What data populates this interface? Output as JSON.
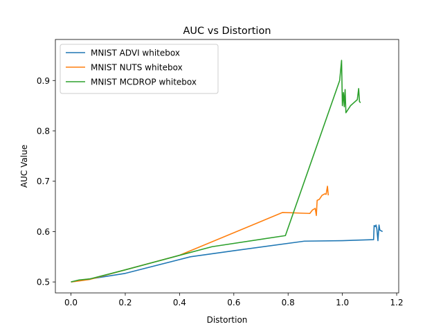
{
  "chart_data": {
    "type": "line",
    "title": "AUC vs Distortion",
    "xlabel": "Distortion",
    "ylabel": "AUC Value",
    "xlim": [
      -0.0575,
      1.2075
    ],
    "ylim": [
      0.4782,
      0.9815
    ],
    "xticks": [
      0.0,
      0.2,
      0.4,
      0.6,
      0.8,
      1.0,
      1.2
    ],
    "xtick_labels": [
      "0.0",
      "0.2",
      "0.4",
      "0.6",
      "0.8",
      "1.0",
      "1.2"
    ],
    "yticks": [
      0.5,
      0.6,
      0.7,
      0.8,
      0.9
    ],
    "ytick_labels": [
      "0.5",
      "0.6",
      "0.7",
      "0.8",
      "0.9"
    ],
    "grid": false,
    "legend_position": "top-left",
    "series": [
      {
        "name": "MNIST ADVI whitebox",
        "color": "#1f77b4",
        "points": [
          [
            0.0,
            0.5
          ],
          [
            0.03,
            0.503
          ],
          [
            0.07,
            0.506
          ],
          [
            0.2,
            0.517
          ],
          [
            0.44,
            0.55
          ],
          [
            0.6,
            0.562
          ],
          [
            0.86,
            0.581
          ],
          [
            1.0,
            0.582
          ],
          [
            1.115,
            0.584
          ],
          [
            1.117,
            0.612
          ],
          [
            1.121,
            0.61
          ],
          [
            1.124,
            0.613
          ],
          [
            1.127,
            0.605
          ],
          [
            1.131,
            0.582
          ],
          [
            1.135,
            0.613
          ],
          [
            1.138,
            0.603
          ],
          [
            1.148,
            0.6
          ]
        ]
      },
      {
        "name": "MNIST NUTS whitebox",
        "color": "#ff7f0e",
        "points": [
          [
            0.0,
            0.5
          ],
          [
            0.03,
            0.502
          ],
          [
            0.07,
            0.505
          ],
          [
            0.2,
            0.524
          ],
          [
            0.4,
            0.553
          ],
          [
            0.78,
            0.638
          ],
          [
            0.88,
            0.636
          ],
          [
            0.89,
            0.643
          ],
          [
            0.9,
            0.646
          ],
          [
            0.904,
            0.632
          ],
          [
            0.907,
            0.662
          ],
          [
            0.915,
            0.664
          ],
          [
            0.925,
            0.672
          ],
          [
            0.935,
            0.675
          ],
          [
            0.94,
            0.674
          ],
          [
            0.945,
            0.69
          ],
          [
            0.948,
            0.672
          ]
        ]
      },
      {
        "name": "MNIST MCDROP whitebox",
        "color": "#2ca02c",
        "points": [
          [
            0.0,
            0.5
          ],
          [
            0.03,
            0.504
          ],
          [
            0.07,
            0.506
          ],
          [
            0.2,
            0.524
          ],
          [
            0.38,
            0.55
          ],
          [
            0.52,
            0.57
          ],
          [
            0.79,
            0.592
          ],
          [
            0.99,
            0.9
          ],
          [
            0.997,
            0.94
          ],
          [
            1.0,
            0.85
          ],
          [
            1.004,
            0.876
          ],
          [
            1.007,
            0.848
          ],
          [
            1.01,
            0.882
          ],
          [
            1.013,
            0.836
          ],
          [
            1.03,
            0.85
          ],
          [
            1.055,
            0.862
          ],
          [
            1.06,
            0.884
          ],
          [
            1.063,
            0.858
          ],
          [
            1.067,
            0.856
          ]
        ]
      }
    ]
  }
}
